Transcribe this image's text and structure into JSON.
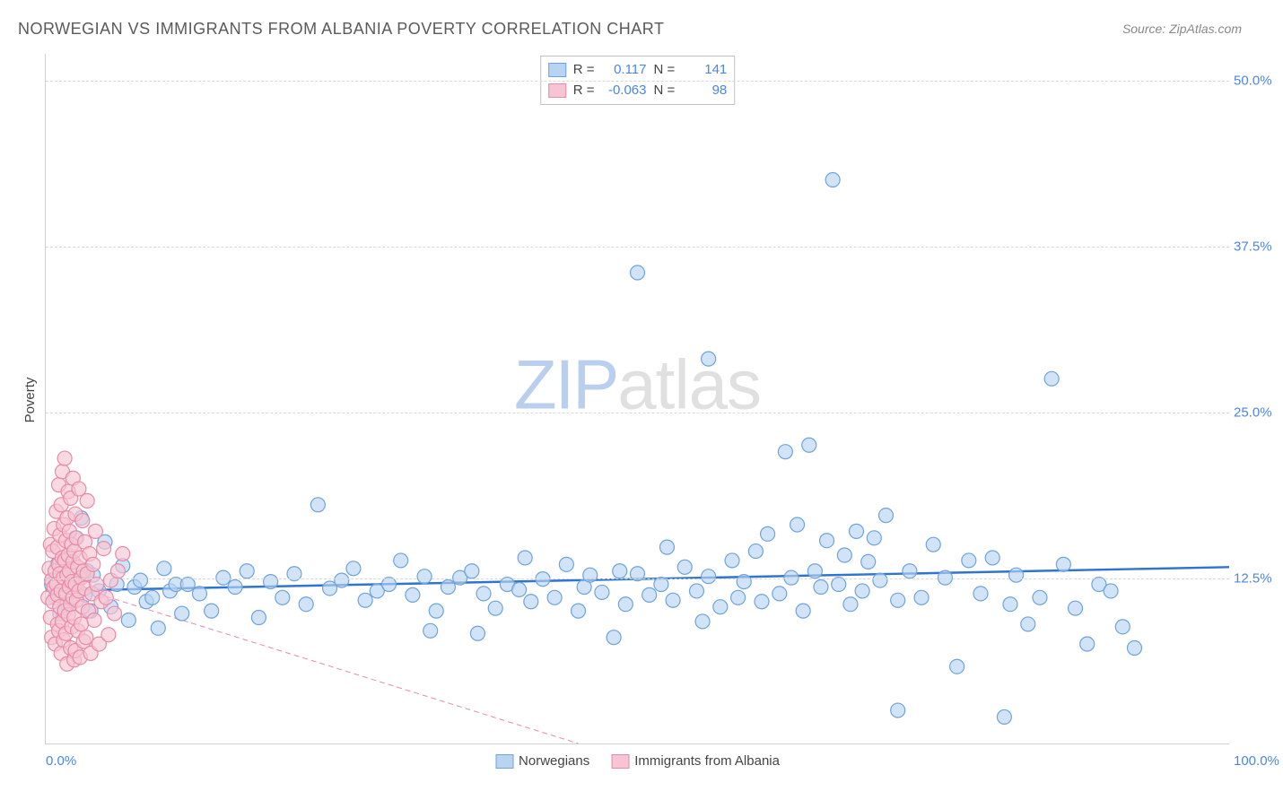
{
  "title": "NORWEGIAN VS IMMIGRANTS FROM ALBANIA POVERTY CORRELATION CHART",
  "source": "Source: ZipAtlas.com",
  "ylabel": "Poverty",
  "watermark": {
    "part1": "ZIP",
    "part2": "atlas"
  },
  "chart": {
    "type": "scatter",
    "xlim": [
      0,
      100
    ],
    "ylim": [
      0,
      52
    ],
    "x_ticks": [
      {
        "value": 0,
        "label": "0.0%"
      },
      {
        "value": 100,
        "label": "100.0%"
      }
    ],
    "y_ticks": [
      {
        "value": 12.5,
        "label": "12.5%"
      },
      {
        "value": 25.0,
        "label": "25.0%"
      },
      {
        "value": 37.5,
        "label": "37.5%"
      },
      {
        "value": 50.0,
        "label": "50.0%"
      }
    ],
    "background_color": "#ffffff",
    "grid_color": "#d8d8d8",
    "marker_radius": 8,
    "marker_stroke_width": 1.2,
    "series": [
      {
        "id": "norwegians",
        "label": "Norwegians",
        "fill": "#b9d4f1",
        "stroke": "#6fa3dd",
        "fill_opacity": 0.65,
        "R": "0.117",
        "N": "141",
        "trend": {
          "x1": 0,
          "y1": 11.5,
          "x2": 100,
          "y2": 13.3,
          "color": "#2e74d0",
          "width": 2.5,
          "dash": ""
        },
        "points": [
          [
            0.5,
            12.0
          ],
          [
            0.8,
            11.0
          ],
          [
            1.0,
            13.5
          ],
          [
            1.2,
            9.8
          ],
          [
            1.5,
            12.8
          ],
          [
            1.8,
            10.5
          ],
          [
            2.0,
            14.0
          ],
          [
            2.3,
            11.8
          ],
          [
            2.5,
            15.5
          ],
          [
            2.8,
            12.5
          ],
          [
            3.0,
            17.0
          ],
          [
            3.3,
            11.2
          ],
          [
            3.5,
            13.0
          ],
          [
            3.8,
            10.0
          ],
          [
            4.0,
            12.7
          ],
          [
            4.5,
            11.5
          ],
          [
            5.0,
            15.2
          ],
          [
            5.5,
            10.3
          ],
          [
            6.0,
            12.0
          ],
          [
            6.5,
            13.4
          ],
          [
            7.0,
            9.3
          ],
          [
            7.5,
            11.8
          ],
          [
            8.0,
            12.3
          ],
          [
            8.5,
            10.7
          ],
          [
            9.0,
            11.0
          ],
          [
            9.5,
            8.7
          ],
          [
            10.0,
            13.2
          ],
          [
            10.5,
            11.5
          ],
          [
            11.0,
            12.0
          ],
          [
            11.5,
            9.8
          ],
          [
            12.0,
            12.0
          ],
          [
            13.0,
            11.3
          ],
          [
            14.0,
            10.0
          ],
          [
            15.0,
            12.5
          ],
          [
            16.0,
            11.8
          ],
          [
            17.0,
            13.0
          ],
          [
            18.0,
            9.5
          ],
          [
            19.0,
            12.2
          ],
          [
            20.0,
            11.0
          ],
          [
            21.0,
            12.8
          ],
          [
            22.0,
            10.5
          ],
          [
            23.0,
            18.0
          ],
          [
            24.0,
            11.7
          ],
          [
            25.0,
            12.3
          ],
          [
            26.0,
            13.2
          ],
          [
            27.0,
            10.8
          ],
          [
            28.0,
            11.5
          ],
          [
            29.0,
            12.0
          ],
          [
            30.0,
            13.8
          ],
          [
            31.0,
            11.2
          ],
          [
            32.0,
            12.6
          ],
          [
            32.5,
            8.5
          ],
          [
            33.0,
            10.0
          ],
          [
            34.0,
            11.8
          ],
          [
            35.0,
            12.5
          ],
          [
            36.0,
            13.0
          ],
          [
            36.5,
            8.3
          ],
          [
            37.0,
            11.3
          ],
          [
            38.0,
            10.2
          ],
          [
            39.0,
            12.0
          ],
          [
            40.0,
            11.6
          ],
          [
            40.5,
            14.0
          ],
          [
            41.0,
            10.7
          ],
          [
            42.0,
            12.4
          ],
          [
            43.0,
            11.0
          ],
          [
            44.0,
            13.5
          ],
          [
            45.0,
            10.0
          ],
          [
            45.5,
            11.8
          ],
          [
            46.0,
            12.7
          ],
          [
            47.0,
            11.4
          ],
          [
            48.0,
            8.0
          ],
          [
            48.5,
            13.0
          ],
          [
            49.0,
            10.5
          ],
          [
            50.0,
            12.8
          ],
          [
            50.0,
            35.5
          ],
          [
            51.0,
            11.2
          ],
          [
            52.0,
            12.0
          ],
          [
            52.5,
            14.8
          ],
          [
            53.0,
            10.8
          ],
          [
            54.0,
            13.3
          ],
          [
            55.0,
            11.5
          ],
          [
            55.5,
            9.2
          ],
          [
            56.0,
            12.6
          ],
          [
            56.0,
            29.0
          ],
          [
            57.0,
            10.3
          ],
          [
            58.0,
            13.8
          ],
          [
            58.5,
            11.0
          ],
          [
            59.0,
            12.2
          ],
          [
            60.0,
            14.5
          ],
          [
            60.5,
            10.7
          ],
          [
            61.0,
            15.8
          ],
          [
            62.0,
            11.3
          ],
          [
            62.5,
            22.0
          ],
          [
            63.0,
            12.5
          ],
          [
            63.5,
            16.5
          ],
          [
            64.0,
            10.0
          ],
          [
            64.5,
            22.5
          ],
          [
            65.0,
            13.0
          ],
          [
            65.5,
            11.8
          ],
          [
            66.0,
            15.3
          ],
          [
            66.5,
            42.5
          ],
          [
            67.0,
            12.0
          ],
          [
            67.5,
            14.2
          ],
          [
            68.0,
            10.5
          ],
          [
            68.5,
            16.0
          ],
          [
            69.0,
            11.5
          ],
          [
            69.5,
            13.7
          ],
          [
            70.0,
            15.5
          ],
          [
            70.5,
            12.3
          ],
          [
            71.0,
            17.2
          ],
          [
            72.0,
            10.8
          ],
          [
            72.0,
            2.5
          ],
          [
            73.0,
            13.0
          ],
          [
            74.0,
            11.0
          ],
          [
            75.0,
            15.0
          ],
          [
            76.0,
            12.5
          ],
          [
            77.0,
            5.8
          ],
          [
            78.0,
            13.8
          ],
          [
            79.0,
            11.3
          ],
          [
            80.0,
            14.0
          ],
          [
            81.0,
            2.0
          ],
          [
            81.5,
            10.5
          ],
          [
            82.0,
            12.7
          ],
          [
            83.0,
            9.0
          ],
          [
            84.0,
            11.0
          ],
          [
            85.0,
            27.5
          ],
          [
            86.0,
            13.5
          ],
          [
            87.0,
            10.2
          ],
          [
            88.0,
            7.5
          ],
          [
            89.0,
            12.0
          ],
          [
            90.0,
            11.5
          ],
          [
            91.0,
            8.8
          ],
          [
            92.0,
            7.2
          ]
        ]
      },
      {
        "id": "immigrants",
        "label": "Immigrants from Albania",
        "fill": "#f6c4d2",
        "stroke": "#e88ba8",
        "fill_opacity": 0.65,
        "R": "-0.063",
        "N": "98",
        "trend": {
          "x1": 0,
          "y1": 12.5,
          "x2": 45,
          "y2": 0,
          "color": "#e88ba8",
          "width": 1,
          "dash": "6,4"
        },
        "points": [
          [
            0.2,
            11.0
          ],
          [
            0.3,
            13.2
          ],
          [
            0.4,
            9.5
          ],
          [
            0.4,
            15.0
          ],
          [
            0.5,
            12.3
          ],
          [
            0.5,
            8.0
          ],
          [
            0.6,
            14.5
          ],
          [
            0.6,
            10.7
          ],
          [
            0.7,
            16.2
          ],
          [
            0.7,
            11.8
          ],
          [
            0.8,
            13.0
          ],
          [
            0.8,
            7.5
          ],
          [
            0.9,
            17.5
          ],
          [
            0.9,
            12.0
          ],
          [
            1.0,
            9.0
          ],
          [
            1.0,
            14.8
          ],
          [
            1.0,
            11.2
          ],
          [
            1.1,
            19.5
          ],
          [
            1.1,
            13.5
          ],
          [
            1.1,
            8.5
          ],
          [
            1.2,
            15.7
          ],
          [
            1.2,
            10.3
          ],
          [
            1.2,
            12.8
          ],
          [
            1.3,
            18.0
          ],
          [
            1.3,
            6.8
          ],
          [
            1.3,
            11.5
          ],
          [
            1.4,
            14.0
          ],
          [
            1.4,
            20.5
          ],
          [
            1.4,
            9.2
          ],
          [
            1.5,
            16.5
          ],
          [
            1.5,
            12.5
          ],
          [
            1.5,
            7.8
          ],
          [
            1.6,
            13.8
          ],
          [
            1.6,
            10.0
          ],
          [
            1.6,
            21.5
          ],
          [
            1.7,
            15.3
          ],
          [
            1.7,
            11.3
          ],
          [
            1.7,
            8.3
          ],
          [
            1.8,
            17.0
          ],
          [
            1.8,
            12.7
          ],
          [
            1.8,
            6.0
          ],
          [
            1.9,
            14.2
          ],
          [
            1.9,
            19.0
          ],
          [
            1.9,
            9.7
          ],
          [
            2.0,
            11.8
          ],
          [
            2.0,
            16.0
          ],
          [
            2.0,
            13.0
          ],
          [
            2.1,
            7.2
          ],
          [
            2.1,
            10.5
          ],
          [
            2.1,
            18.5
          ],
          [
            2.2,
            12.2
          ],
          [
            2.2,
            15.0
          ],
          [
            2.2,
            8.8
          ],
          [
            2.3,
            13.7
          ],
          [
            2.3,
            20.0
          ],
          [
            2.3,
            11.0
          ],
          [
            2.4,
            6.3
          ],
          [
            2.4,
            14.5
          ],
          [
            2.4,
            9.5
          ],
          [
            2.5,
            17.3
          ],
          [
            2.5,
            12.0
          ],
          [
            2.5,
            7.0
          ],
          [
            2.6,
            10.8
          ],
          [
            2.6,
            15.5
          ],
          [
            2.7,
            13.3
          ],
          [
            2.7,
            8.5
          ],
          [
            2.8,
            11.5
          ],
          [
            2.8,
            19.2
          ],
          [
            2.9,
            14.0
          ],
          [
            2.9,
            6.5
          ],
          [
            3.0,
            12.5
          ],
          [
            3.0,
            9.0
          ],
          [
            3.1,
            16.8
          ],
          [
            3.1,
            10.3
          ],
          [
            3.2,
            13.0
          ],
          [
            3.2,
            7.7
          ],
          [
            3.3,
            11.7
          ],
          [
            3.3,
            15.2
          ],
          [
            3.4,
            8.0
          ],
          [
            3.5,
            12.8
          ],
          [
            3.5,
            18.3
          ],
          [
            3.6,
            10.0
          ],
          [
            3.7,
            14.3
          ],
          [
            3.8,
            6.8
          ],
          [
            3.9,
            11.3
          ],
          [
            4.0,
            13.5
          ],
          [
            4.1,
            9.3
          ],
          [
            4.2,
            16.0
          ],
          [
            4.3,
            12.0
          ],
          [
            4.5,
            7.5
          ],
          [
            4.7,
            10.7
          ],
          [
            4.9,
            14.7
          ],
          [
            5.1,
            11.0
          ],
          [
            5.3,
            8.2
          ],
          [
            5.5,
            12.3
          ],
          [
            5.8,
            9.8
          ],
          [
            6.1,
            13.0
          ],
          [
            6.5,
            14.3
          ]
        ]
      }
    ]
  },
  "stats_legend": {
    "R_label": "R =",
    "N_label": "N ="
  }
}
